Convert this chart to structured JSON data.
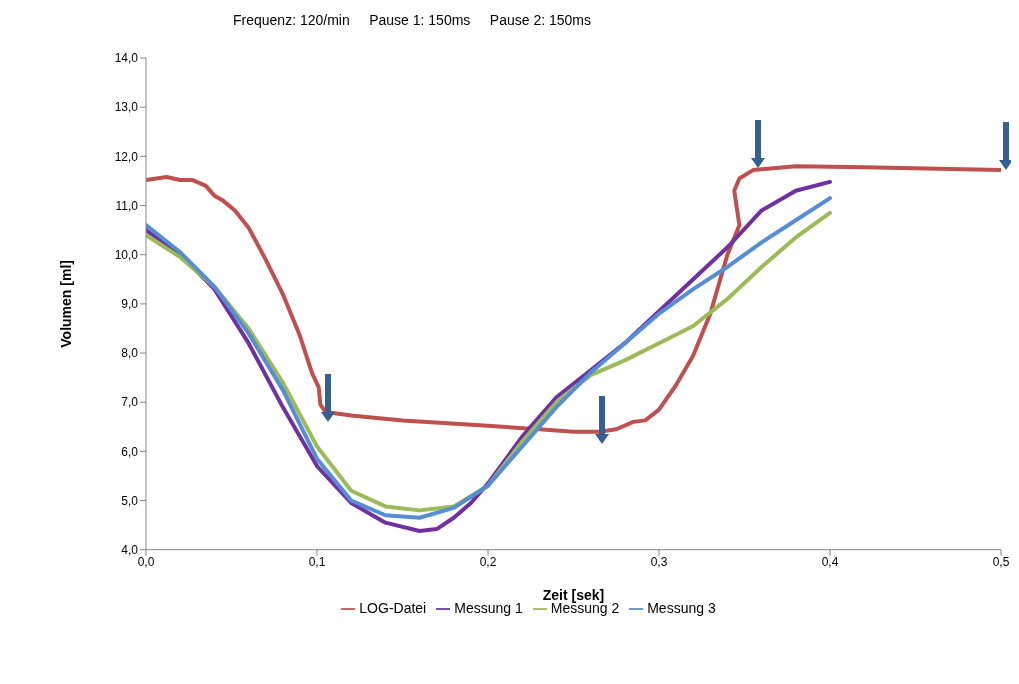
{
  "chart_data": {
    "type": "line",
    "title": "Frequenz: 120/min     Pause 1: 150ms     Pause 2: 150ms",
    "xlabel": "Zeit [sek]",
    "ylabel": "Volumen [ml]",
    "xlim": [
      0,
      0.5
    ],
    "xticks": [
      {
        "value": 0,
        "label": "0,0"
      },
      {
        "value": 0.1,
        "label": "0,1"
      },
      {
        "value": 0.2,
        "label": "0,2"
      },
      {
        "value": 0.3,
        "label": "0,3"
      },
      {
        "value": 0.4,
        "label": "0,4"
      },
      {
        "value": 0.5,
        "label": "0,5"
      }
    ],
    "ylim": [
      4,
      14
    ],
    "yticks": [
      {
        "value": 4,
        "label": "4,0"
      },
      {
        "value": 5,
        "label": "5,0"
      },
      {
        "value": 6,
        "label": "6,0"
      },
      {
        "value": 7,
        "label": "7,0"
      },
      {
        "value": 8,
        "label": "8,0"
      },
      {
        "value": 9,
        "label": "9,0"
      },
      {
        "value": 10,
        "label": "10,0"
      },
      {
        "value": 11,
        "label": "11,0"
      },
      {
        "value": 12,
        "label": "12,0"
      },
      {
        "value": 13,
        "label": "13,0"
      },
      {
        "value": 14,
        "label": "14,0"
      }
    ],
    "grid": false,
    "legend": "bottom",
    "marker": "none",
    "line_style": "solid",
    "series": [
      {
        "name": "LOG-Datei",
        "color": "#c0504d",
        "x": [
          0,
          0.012,
          0.02,
          0.027,
          0.035,
          0.04,
          0.045,
          0.052,
          0.06,
          0.07,
          0.08,
          0.09,
          0.097,
          0.101,
          0.102,
          0.105,
          0.12,
          0.15,
          0.2,
          0.23,
          0.25,
          0.265,
          0.275,
          0.285,
          0.292,
          0.3,
          0.31,
          0.32,
          0.33,
          0.34,
          0.347,
          0.344,
          0.347,
          0.355,
          0.38,
          0.42,
          0.5
        ],
        "values": [
          11.52,
          11.58,
          11.52,
          11.52,
          11.4,
          11.2,
          11.1,
          10.9,
          10.55,
          9.9,
          9.2,
          8.35,
          7.6,
          7.3,
          6.95,
          6.8,
          6.73,
          6.63,
          6.52,
          6.45,
          6.4,
          6.4,
          6.45,
          6.6,
          6.63,
          6.85,
          7.35,
          7.95,
          8.8,
          10.0,
          10.6,
          11.3,
          11.55,
          11.72,
          11.8,
          11.78,
          11.72
        ]
      },
      {
        "name": "Messung 1",
        "color": "#7030a0",
        "x": [
          0,
          0.02,
          0.04,
          0.06,
          0.08,
          0.1,
          0.12,
          0.14,
          0.16,
          0.17,
          0.18,
          0.19,
          0.2,
          0.22,
          0.24,
          0.26,
          0.28,
          0.3,
          0.32,
          0.34,
          0.36,
          0.38,
          0.4
        ],
        "values": [
          10.5,
          10.0,
          9.3,
          8.2,
          6.9,
          5.7,
          4.95,
          4.55,
          4.38,
          4.42,
          4.65,
          4.95,
          5.35,
          6.3,
          7.1,
          7.65,
          8.2,
          8.85,
          9.5,
          10.15,
          10.9,
          11.3,
          11.48
        ]
      },
      {
        "name": "Messung 2",
        "color": "#9bbb59",
        "x": [
          0,
          0.02,
          0.04,
          0.06,
          0.08,
          0.1,
          0.12,
          0.14,
          0.16,
          0.18,
          0.2,
          0.22,
          0.24,
          0.26,
          0.28,
          0.3,
          0.32,
          0.34,
          0.36,
          0.38,
          0.4
        ],
        "values": [
          10.4,
          9.95,
          9.35,
          8.5,
          7.4,
          6.1,
          5.2,
          4.88,
          4.8,
          4.88,
          5.3,
          6.2,
          7.0,
          7.55,
          7.85,
          8.2,
          8.55,
          9.1,
          9.75,
          10.35,
          10.85
        ]
      },
      {
        "name": "Messung 3",
        "color": "#558ed5",
        "x": [
          0,
          0.02,
          0.04,
          0.06,
          0.08,
          0.1,
          0.12,
          0.14,
          0.16,
          0.18,
          0.2,
          0.22,
          0.24,
          0.26,
          0.28,
          0.3,
          0.32,
          0.34,
          0.36,
          0.38,
          0.4
        ],
        "values": [
          10.6,
          10.05,
          9.35,
          8.4,
          7.25,
          5.85,
          5.0,
          4.7,
          4.65,
          4.85,
          5.3,
          6.1,
          6.9,
          7.6,
          8.2,
          8.8,
          9.3,
          9.75,
          10.25,
          10.7,
          11.15
        ]
      }
    ]
  }
}
